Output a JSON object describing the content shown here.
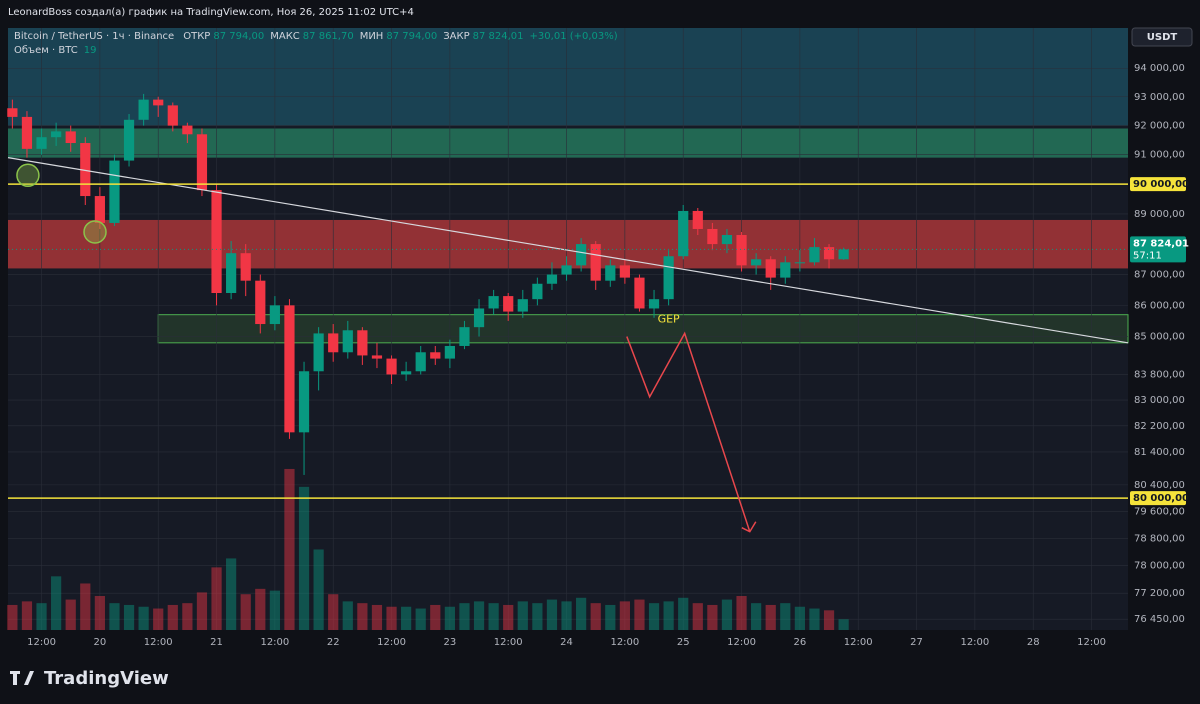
{
  "chart_data": {
    "type": "candlestick",
    "caption": "LeonardBoss создал(а) график на TradingView.com, Ноя 26, 2025 11:02 UTC+4",
    "symbol": "Bitcoin / TetherUS · 1ч · Binance",
    "ohlc_legend": [
      {
        "label": "ОТКР",
        "value": "87 794,00"
      },
      {
        "label": "МАКС",
        "value": "87 861,70"
      },
      {
        "label": "МИН",
        "value": "87 794,00"
      },
      {
        "label": "ЗАКР",
        "value": "87 824,01"
      }
    ],
    "change": "+30,01 (+0,03%)",
    "volume_label": "Объем · BTC",
    "volume_last": 19,
    "currency": "USDT",
    "price_label": "87 824,01",
    "countdown": "57:11",
    "brand": "TradingView",
    "log_scale": true,
    "grid": true,
    "up_color": "#089981",
    "down_color": "#f23645",
    "x": [
      -18,
      -15,
      -12,
      -9,
      -6,
      -3,
      0,
      3,
      6,
      9,
      12,
      15,
      18,
      21,
      24,
      27,
      30,
      33,
      36,
      39,
      42,
      45,
      48,
      51,
      54,
      57,
      60,
      63,
      66,
      69,
      72,
      75,
      78,
      81,
      84,
      87,
      90,
      93,
      96,
      99,
      102,
      105,
      108,
      111,
      114,
      117,
      120,
      123,
      126,
      129,
      132,
      135,
      138,
      141,
      144,
      147,
      150,
      153
    ],
    "open": [
      92600,
      92300,
      91200,
      91600,
      91800,
      91400,
      89600,
      88700,
      90800,
      92200,
      92900,
      92700,
      92000,
      91700,
      89800,
      86400,
      87700,
      86800,
      85400,
      86000,
      82000,
      83900,
      85100,
      84500,
      85200,
      84400,
      84300,
      83800,
      83900,
      84500,
      84300,
      84700,
      85300,
      85900,
      86300,
      85800,
      86200,
      86700,
      87000,
      87300,
      88000,
      86800,
      87300,
      86900,
      85900,
      86200,
      87600,
      89100,
      88500,
      88000,
      88300,
      87300,
      87500,
      86900,
      87400,
      87400,
      87900,
      87500
    ],
    "high": [
      92900,
      92500,
      91900,
      92100,
      92000,
      91600,
      89900,
      91000,
      92400,
      93100,
      93000,
      92800,
      92100,
      91900,
      90000,
      88100,
      88000,
      87000,
      86300,
      86200,
      84200,
      85300,
      85400,
      85500,
      85300,
      84800,
      84400,
      84200,
      84700,
      84700,
      84900,
      85500,
      86200,
      86500,
      86400,
      86500,
      86900,
      87400,
      87600,
      88200,
      88100,
      87500,
      87500,
      87000,
      86500,
      87800,
      89300,
      89200,
      88700,
      88500,
      88400,
      87700,
      87600,
      87600,
      87800,
      88200,
      88000,
      87880
    ],
    "low": [
      91900,
      90900,
      91000,
      91300,
      91100,
      89300,
      88500,
      88600,
      90600,
      92000,
      92300,
      91800,
      91400,
      89600,
      86000,
      86200,
      86300,
      85100,
      85200,
      81800,
      80700,
      83300,
      84200,
      84300,
      84100,
      84000,
      83500,
      83600,
      83800,
      84100,
      84000,
      84600,
      85000,
      85700,
      85500,
      85600,
      86000,
      86500,
      86800,
      87100,
      86500,
      86600,
      86700,
      85800,
      85600,
      86000,
      87500,
      88300,
      87800,
      87700,
      87100,
      87000,
      86500,
      86700,
      87100,
      87300,
      87200,
      87480
    ],
    "close": [
      92300,
      91200,
      91600,
      91800,
      91400,
      89600,
      88700,
      90800,
      92200,
      92900,
      92700,
      92000,
      91700,
      89800,
      86400,
      87700,
      86800,
      85400,
      86000,
      82000,
      83900,
      85100,
      84500,
      85200,
      84400,
      84300,
      83800,
      83900,
      84500,
      84300,
      84700,
      85300,
      85900,
      86300,
      85800,
      86200,
      86700,
      87000,
      87300,
      88000,
      86800,
      87300,
      86900,
      85900,
      86200,
      87600,
      89100,
      88500,
      88000,
      88300,
      87300,
      87500,
      86900,
      87400,
      87400,
      87900,
      87500,
      87824
    ],
    "volume": [
      1400,
      1600,
      1500,
      3000,
      1700,
      2600,
      1900,
      1500,
      1400,
      1300,
      1200,
      1400,
      1500,
      2100,
      3500,
      4000,
      2000,
      2300,
      2200,
      9000,
      8000,
      4500,
      2000,
      1600,
      1500,
      1400,
      1300,
      1300,
      1200,
      1400,
      1300,
      1500,
      1600,
      1500,
      1400,
      1600,
      1500,
      1700,
      1600,
      1800,
      1500,
      1400,
      1600,
      1700,
      1500,
      1600,
      1800,
      1500,
      1400,
      1700,
      1900,
      1500,
      1400,
      1500,
      1300,
      1200,
      1100,
      600
    ],
    "volume_lim": [
      0,
      9500
    ],
    "xlim": [
      -18.9,
      211.5
    ],
    "xticks": [
      {
        "value": -12,
        "label": "12:00"
      },
      {
        "value": 0,
        "label": "20"
      },
      {
        "value": 12,
        "label": "12:00"
      },
      {
        "value": 24,
        "label": "21"
      },
      {
        "value": 36,
        "label": "12:00"
      },
      {
        "value": 48,
        "label": "22"
      },
      {
        "value": 60,
        "label": "12:00"
      },
      {
        "value": 72,
        "label": "23"
      },
      {
        "value": 84,
        "label": "12:00"
      },
      {
        "value": 96,
        "label": "24"
      },
      {
        "value": 108,
        "label": "12:00"
      },
      {
        "value": 120,
        "label": "25"
      },
      {
        "value": 132,
        "label": "12:00"
      },
      {
        "value": 144,
        "label": "26"
      },
      {
        "value": 156,
        "label": "12:00"
      },
      {
        "value": 168,
        "label": "27"
      },
      {
        "value": 180,
        "label": "12:00"
      },
      {
        "value": 192,
        "label": "28"
      },
      {
        "value": 204,
        "label": "12:00"
      }
    ],
    "ylim": [
      76140,
      95430
    ],
    "yticks": [
      {
        "value": 94000,
        "label": "94 000,00"
      },
      {
        "value": 93000,
        "label": "93 000,00"
      },
      {
        "value": 92000,
        "label": "92 000,00"
      },
      {
        "value": 91000,
        "label": "91 000,00"
      },
      {
        "value": 89000,
        "label": "89 000,00"
      },
      {
        "value": 87000,
        "label": "87 000,00"
      },
      {
        "value": 86000,
        "label": "86 000,00"
      },
      {
        "value": 85000,
        "label": "85 000,00"
      },
      {
        "value": 83800,
        "label": "83 800,00"
      },
      {
        "value": 83000,
        "label": "83 000,00"
      },
      {
        "value": 82200,
        "label": "82 200,00"
      },
      {
        "value": 81400,
        "label": "81 400,00"
      },
      {
        "value": 80400,
        "label": "80 400,00"
      },
      {
        "value": 79600,
        "label": "79 600,00"
      },
      {
        "value": 78800,
        "label": "78 800,00"
      },
      {
        "value": 78000,
        "label": "78 000,00"
      },
      {
        "value": 77200,
        "label": "77 200,00"
      },
      {
        "value": 76450,
        "label": "76 450,00"
      }
    ],
    "zones": [
      {
        "from": 92000,
        "to": 95430,
        "color": "#1b4a5c"
      },
      {
        "from": 90900,
        "to": 91900,
        "color": "#25775c"
      },
      {
        "from": 87200,
        "to": 88800,
        "color": "#a83638"
      },
      {
        "from": 84800,
        "to": 85700,
        "color": "#2e4a30",
        "x0": 12
      }
    ],
    "levels": [
      {
        "value": 90000,
        "label": "90 000,00",
        "color": "#f5e33b"
      },
      {
        "value": 80000,
        "label": "80 000,00",
        "color": "#f5e33b"
      }
    ],
    "trend_line": {
      "x": [
        -18.9,
        211.5
      ],
      "y": [
        90900,
        84800
      ],
      "color": "#d7d9de"
    },
    "arrow": {
      "x": [
        108.4,
        113.1,
        120.3,
        133.7
      ],
      "y": [
        85000,
        83100,
        85100,
        79000
      ],
      "color": "#e8474c"
    },
    "gap_label": {
      "text": "GEP",
      "x": 117,
      "y": 85550
    },
    "circles": {
      "x": [
        -14.8,
        -1
      ],
      "y": [
        90300,
        88400
      ],
      "color": "#8bc34a"
    }
  }
}
